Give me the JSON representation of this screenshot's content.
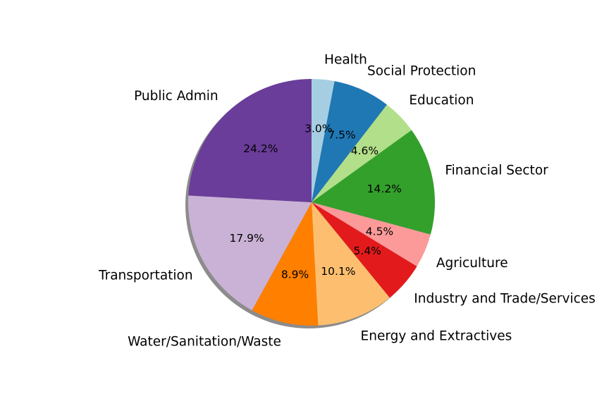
{
  "chart_data": {
    "type": "pie",
    "title": "",
    "shadow": true,
    "start": "top",
    "direction": "clockwise",
    "categories": [
      "Health",
      "Social Protection",
      "Education",
      "Financial Sector",
      "Agriculture",
      "Industry and Trade/Services",
      "Energy and Extractives",
      "Water/Sanitation/Waste",
      "Transportation",
      "Public Admin"
    ],
    "values": [
      3.0,
      7.5,
      4.6,
      14.2,
      4.5,
      5.4,
      10.1,
      8.9,
      17.9,
      24.2
    ],
    "value_labels": [
      "3.0%",
      "7.5%",
      "4.6%",
      "14.2%",
      "4.5%",
      "5.4%",
      "10.1%",
      "8.9%",
      "17.9%",
      "24.2%"
    ],
    "colors": [
      "#a6cee3",
      "#1f78b4",
      "#b2df8a",
      "#33a02c",
      "#fb9a99",
      "#e31a1c",
      "#fdbf6f",
      "#ff7f00",
      "#cab2d6",
      "#6a3d9a"
    ]
  }
}
